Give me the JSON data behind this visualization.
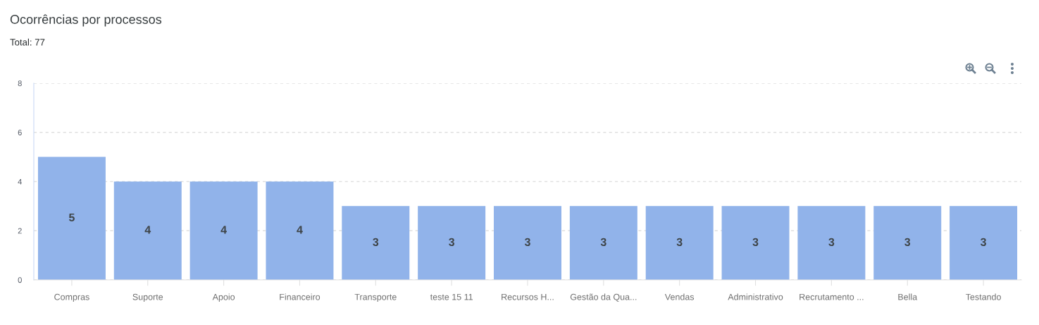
{
  "chart_data": {
    "type": "bar",
    "title": "Ocorrências por processos",
    "subtitle": "Total: 77",
    "categories": [
      "Compras",
      "Suporte",
      "Apoio",
      "Financeiro",
      "Transporte",
      "teste 15 11",
      "Recursos H...",
      "Gestão da Qua...",
      "Vendas",
      "Administrativo",
      "Recrutamento ...",
      "Bella",
      "Testando"
    ],
    "values": [
      5,
      4,
      4,
      4,
      3,
      3,
      3,
      3,
      3,
      3,
      3,
      3,
      3
    ],
    "color": "#91b3ea",
    "ylim": [
      0,
      8
    ],
    "yticks": [
      0,
      2,
      4,
      6,
      8
    ],
    "grid": "y",
    "data_labels": true
  }
}
